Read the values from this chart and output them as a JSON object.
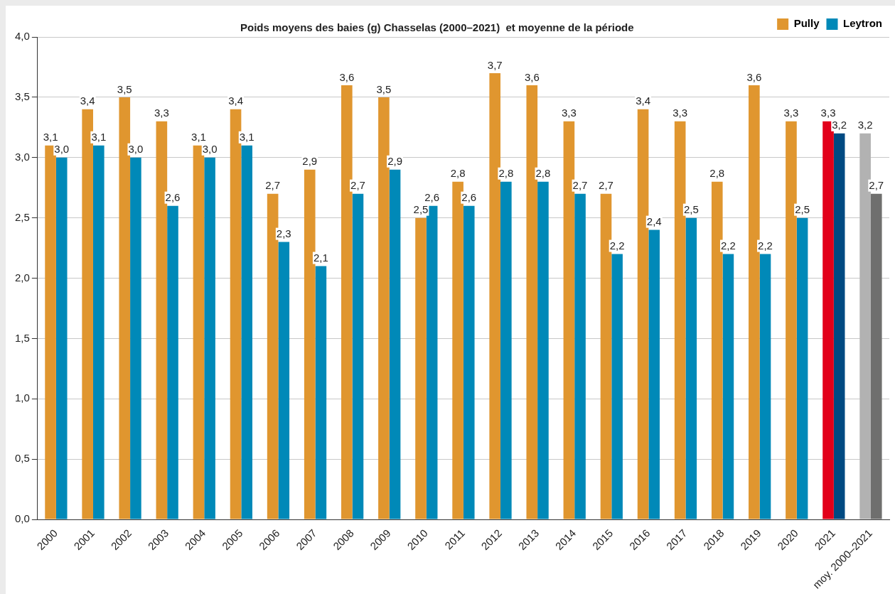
{
  "chart_data": {
    "type": "bar",
    "title": "Poids moyens des baies (g) Chasselas (2000–2021)  et moyenne de la période",
    "categories": [
      "2000",
      "2001",
      "2002",
      "2003",
      "2004",
      "2005",
      "2006",
      "2007",
      "2008",
      "2009",
      "2010",
      "2011",
      "2012",
      "2013",
      "2014",
      "2015",
      "2016",
      "2017",
      "2018",
      "2019",
      "2020",
      "2021",
      "moy. 2000–2021"
    ],
    "series": [
      {
        "name": "Pully",
        "color": "#e0962f",
        "colors": [
          "#e0962f",
          "#e0962f",
          "#e0962f",
          "#e0962f",
          "#e0962f",
          "#e0962f",
          "#e0962f",
          "#e0962f",
          "#e0962f",
          "#e0962f",
          "#e0962f",
          "#e0962f",
          "#e0962f",
          "#e0962f",
          "#e0962f",
          "#e0962f",
          "#e0962f",
          "#e0962f",
          "#e0962f",
          "#e0962f",
          "#e0962f",
          "#e2001a",
          "#b2b2b2"
        ],
        "values": [
          3.1,
          3.4,
          3.5,
          3.3,
          3.1,
          3.4,
          2.7,
          2.9,
          3.6,
          3.5,
          2.5,
          2.8,
          3.7,
          3.6,
          3.3,
          2.7,
          3.4,
          3.3,
          2.8,
          3.6,
          3.3,
          3.3,
          3.2
        ],
        "value_labels": [
          "3,1",
          "3,4",
          "3,5",
          "3,3",
          "3,1",
          "3,4",
          "2,7",
          "2,9",
          "3,6",
          "3,5",
          "2,5",
          "2,8",
          "3,7",
          "3,6",
          "3,3",
          "2,7",
          "3,4",
          "3,3",
          "2,8",
          "3,6",
          "3,3",
          "3,3",
          "3,2"
        ]
      },
      {
        "name": "Leytron",
        "color": "#0089b8",
        "colors": [
          "#0089b8",
          "#0089b8",
          "#0089b8",
          "#0089b8",
          "#0089b8",
          "#0089b8",
          "#0089b8",
          "#0089b8",
          "#0089b8",
          "#0089b8",
          "#0089b8",
          "#0089b8",
          "#0089b8",
          "#0089b8",
          "#0089b8",
          "#0089b8",
          "#0089b8",
          "#0089b8",
          "#0089b8",
          "#0089b8",
          "#0089b8",
          "#004a82",
          "#6f6f6e"
        ],
        "values": [
          3.0,
          3.1,
          3.0,
          2.6,
          3.0,
          3.1,
          2.3,
          2.1,
          2.7,
          2.9,
          2.6,
          2.6,
          2.8,
          2.8,
          2.7,
          2.2,
          2.4,
          2.5,
          2.2,
          2.2,
          2.5,
          3.2,
          2.7
        ],
        "value_labels": [
          "3,0",
          "3,1",
          "3,0",
          "2,6",
          "3,0",
          "3,1",
          "2,3",
          "2,1",
          "2,7",
          "2,9",
          "2,6",
          "2,6",
          "2,8",
          "2,8",
          "2,7",
          "2,2",
          "2,4",
          "2,5",
          "2,2",
          "2,2",
          "2,5",
          "3,2",
          "2,7"
        ]
      }
    ],
    "ylim": [
      0,
      4
    ],
    "yticks": [
      {
        "value": 0,
        "label": "0,0"
      },
      {
        "value": 0.5,
        "label": "0,5"
      },
      {
        "value": 1,
        "label": "1,0"
      },
      {
        "value": 1.5,
        "label": "1,5"
      },
      {
        "value": 2,
        "label": "2,0"
      },
      {
        "value": 2.5,
        "label": "2,5"
      },
      {
        "value": 3,
        "label": "3,0"
      },
      {
        "value": 3.5,
        "label": "3,5"
      },
      {
        "value": 4,
        "label": "4,0"
      }
    ],
    "grid": "y",
    "legend": "top right"
  }
}
